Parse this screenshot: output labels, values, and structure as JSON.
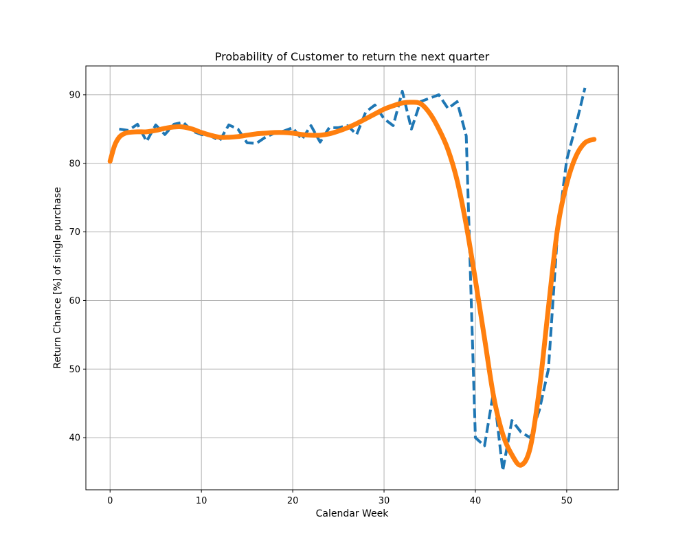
{
  "chart_data": {
    "type": "line",
    "title": "Probability of Customer to return the next quarter",
    "xlabel": "Calendar Week",
    "ylabel": "Return Chance [%] of single purchase",
    "xlim": [
      -2.65,
      55.65
    ],
    "ylim": [
      32.4,
      94.2
    ],
    "xticks": [
      0,
      10,
      20,
      30,
      40,
      50
    ],
    "yticks": [
      40,
      50,
      60,
      70,
      80,
      90
    ],
    "grid": true,
    "series": [
      {
        "style": "dashed",
        "color": "#1f77b4",
        "x": [
          1,
          2,
          3,
          4,
          5,
          6,
          7,
          8,
          9,
          10,
          11,
          12,
          13,
          14,
          15,
          16,
          17,
          18,
          19,
          20,
          21,
          22,
          23,
          24,
          25,
          26,
          27,
          28,
          29,
          30,
          31,
          32,
          33,
          34,
          35,
          36,
          37,
          38,
          39,
          40,
          41,
          42,
          43,
          44,
          45,
          46,
          47,
          48,
          49,
          50,
          51,
          52
        ],
        "y": [
          85.0,
          84.8,
          85.7,
          83.2,
          85.6,
          84.2,
          85.7,
          86.0,
          84.7,
          84.2,
          84.0,
          83.3,
          85.6,
          85.0,
          83.0,
          82.9,
          83.8,
          84.4,
          84.7,
          85.2,
          83.5,
          85.5,
          83.1,
          85.2,
          85.2,
          85.5,
          84.2,
          87.5,
          88.5,
          86.5,
          85.5,
          90.5,
          85.0,
          89.0,
          89.5,
          90.0,
          88.0,
          89.0,
          84.0,
          40.0,
          38.8,
          46.8,
          35.2,
          42.5,
          40.8,
          40.0,
          44.0,
          50.0,
          70.0,
          80.5,
          85.5,
          91.0
        ]
      },
      {
        "style": "solid",
        "color": "#ff7f0e",
        "x": [
          0,
          0.5,
          1,
          1.5,
          2,
          3,
          4,
          5,
          6,
          7,
          8,
          9,
          10,
          11,
          12,
          13,
          14,
          15,
          16,
          17,
          18,
          19,
          20,
          21,
          22,
          23,
          24,
          25,
          26,
          27,
          28,
          29,
          30,
          31,
          32,
          33,
          34,
          35,
          36,
          37,
          38,
          39,
          40,
          41,
          42,
          43,
          44,
          45,
          46,
          47,
          48,
          49,
          50,
          51,
          52,
          53
        ],
        "y": [
          80.3,
          82.6,
          83.8,
          84.3,
          84.5,
          84.6,
          84.6,
          84.8,
          85.1,
          85.3,
          85.3,
          85.0,
          84.5,
          84.1,
          83.8,
          83.8,
          83.9,
          84.1,
          84.3,
          84.4,
          84.5,
          84.5,
          84.4,
          84.2,
          84.1,
          84.1,
          84.3,
          84.7,
          85.2,
          85.8,
          86.5,
          87.2,
          87.9,
          88.4,
          88.8,
          88.9,
          88.7,
          87.3,
          85.0,
          82.0,
          77.5,
          71.0,
          63.0,
          54.5,
          46.0,
          40.5,
          37.5,
          36.0,
          38.5,
          47.0,
          59.0,
          70.5,
          77.0,
          81.0,
          83.0,
          83.5
        ]
      }
    ]
  }
}
